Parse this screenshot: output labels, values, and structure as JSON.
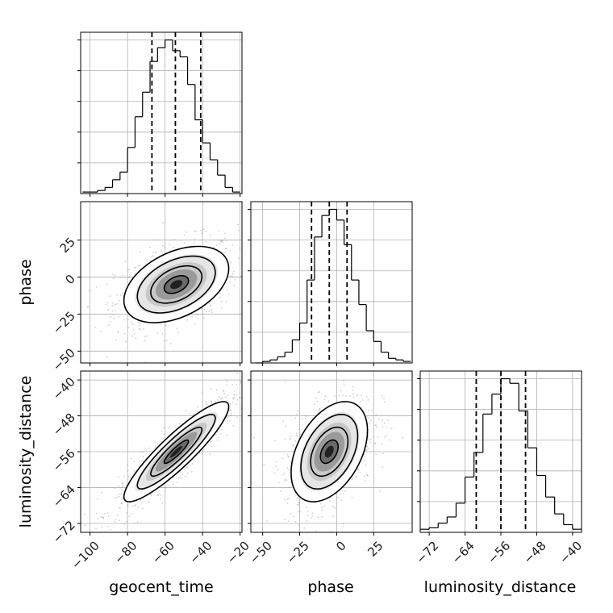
{
  "chart_data": {
    "type": "corner",
    "grid": true,
    "parameters": [
      {
        "name": "geocent_time",
        "range": [
          -105,
          -19
        ],
        "ticks": [
          -100,
          -80,
          -60,
          -40,
          -20
        ],
        "tick_labels": [
          "−100",
          "−80",
          "−60",
          "−40",
          "−20"
        ],
        "quantiles": [
          -67,
          -54.5,
          -41
        ],
        "center": -54,
        "std": 13
      },
      {
        "name": "phase",
        "range": [
          -58,
          51
        ],
        "ticks": [
          -50,
          -25,
          0,
          25
        ],
        "tick_labels": [
          "−50",
          "−25",
          "0",
          "25"
        ],
        "quantiles": [
          -17,
          -5,
          7
        ],
        "center": -5,
        "std": 12
      },
      {
        "name": "luminosity_distance",
        "range": [
          -74,
          -38
        ],
        "ticks": [
          -72,
          -64,
          -56,
          -48,
          -40
        ],
        "tick_labels": [
          "−72",
          "−64",
          "−56",
          "−48",
          "−40"
        ],
        "quantiles": [
          -61.5,
          -56,
          -50.5
        ],
        "center": -56,
        "std": 5.2
      }
    ],
    "histograms": [
      {
        "parameter": "geocent_time",
        "bins": [
          -104,
          -100,
          -96,
          -92,
          -88,
          -84,
          -80,
          -76,
          -72,
          -68,
          -64,
          -60,
          -56,
          -52,
          -48,
          -44,
          -40,
          -36,
          -32,
          -28,
          -24,
          -20
        ],
        "counts": [
          0.01,
          0.01,
          0.02,
          0.04,
          0.09,
          0.14,
          0.3,
          0.5,
          0.66,
          0.86,
          0.95,
          1.0,
          0.93,
          0.89,
          0.71,
          0.48,
          0.33,
          0.22,
          0.12,
          0.04,
          0.01
        ]
      },
      {
        "parameter": "phase",
        "bins": [
          -55,
          -50,
          -45,
          -40,
          -35,
          -30,
          -25,
          -20,
          -15,
          -10,
          -5,
          0,
          5,
          10,
          15,
          20,
          25,
          30,
          35,
          40,
          45,
          50
        ],
        "counts": [
          0.0,
          0.01,
          0.02,
          0.04,
          0.07,
          0.15,
          0.26,
          0.54,
          0.82,
          0.96,
          1.0,
          0.93,
          0.77,
          0.54,
          0.38,
          0.21,
          0.14,
          0.07,
          0.03,
          0.02,
          0.01
        ]
      },
      {
        "parameter": "luminosity_distance",
        "bins": [
          -74,
          -72,
          -70,
          -68,
          -66,
          -64,
          -62,
          -60,
          -58,
          -56,
          -54,
          -52,
          -50,
          -48,
          -46,
          -44,
          -42,
          -40,
          -38
        ],
        "counts": [
          0.02,
          0.03,
          0.06,
          0.1,
          0.19,
          0.36,
          0.52,
          0.77,
          0.9,
          1.0,
          0.97,
          0.79,
          0.55,
          0.37,
          0.23,
          0.12,
          0.05,
          0.02
        ]
      }
    ],
    "correlations": [
      {
        "x": "geocent_time",
        "y": "phase",
        "rho": 0.42
      },
      {
        "x": "geocent_time",
        "y": "luminosity_distance",
        "rho": 0.9
      },
      {
        "x": "phase",
        "y": "luminosity_distance",
        "rho": 0.42
      }
    ]
  }
}
